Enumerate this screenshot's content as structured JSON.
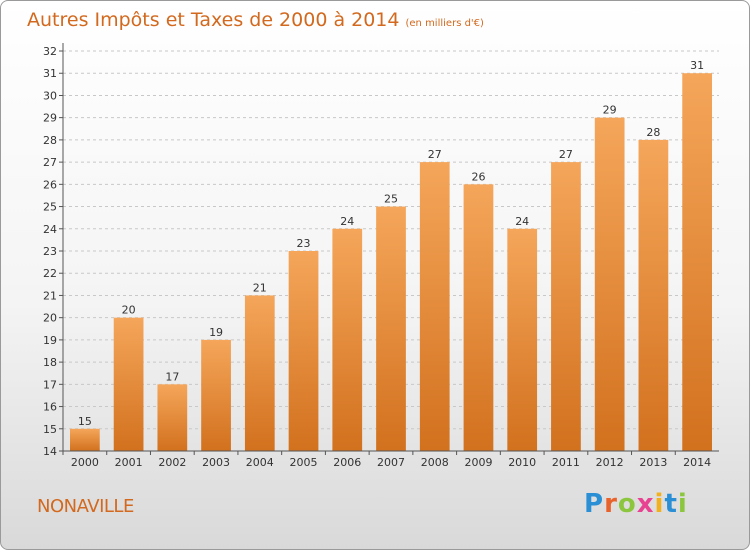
{
  "header": {
    "title": "Autres Impôts et Taxes de 2000 à 2014",
    "subtitle": "(en milliers d'€)"
  },
  "footer": {
    "place": "NONAVILLE",
    "brand": "Proxiti"
  },
  "colors": {
    "bar_top": "#f5a65a",
    "bar_bottom": "#d2711e",
    "accent": "#d2691e",
    "grid": "#c8c8c8"
  },
  "chart_data": {
    "type": "bar",
    "title": "Autres Impôts et Taxes de 2000 à 2014",
    "subtitle": "(en milliers d'€)",
    "xlabel": "",
    "ylabel": "",
    "categories": [
      "2000",
      "2001",
      "2002",
      "2003",
      "2004",
      "2005",
      "2006",
      "2007",
      "2008",
      "2009",
      "2010",
      "2011",
      "2012",
      "2013",
      "2014"
    ],
    "values": [
      15,
      20,
      17,
      19,
      21,
      23,
      24,
      25,
      27,
      26,
      24,
      27,
      29,
      28,
      31
    ],
    "ylim": [
      14,
      32
    ],
    "yticks": [
      14,
      15,
      16,
      17,
      18,
      19,
      20,
      21,
      22,
      23,
      24,
      25,
      26,
      27,
      28,
      29,
      30,
      31,
      32
    ],
    "grid": "horizontal dashed",
    "legend": "none"
  }
}
